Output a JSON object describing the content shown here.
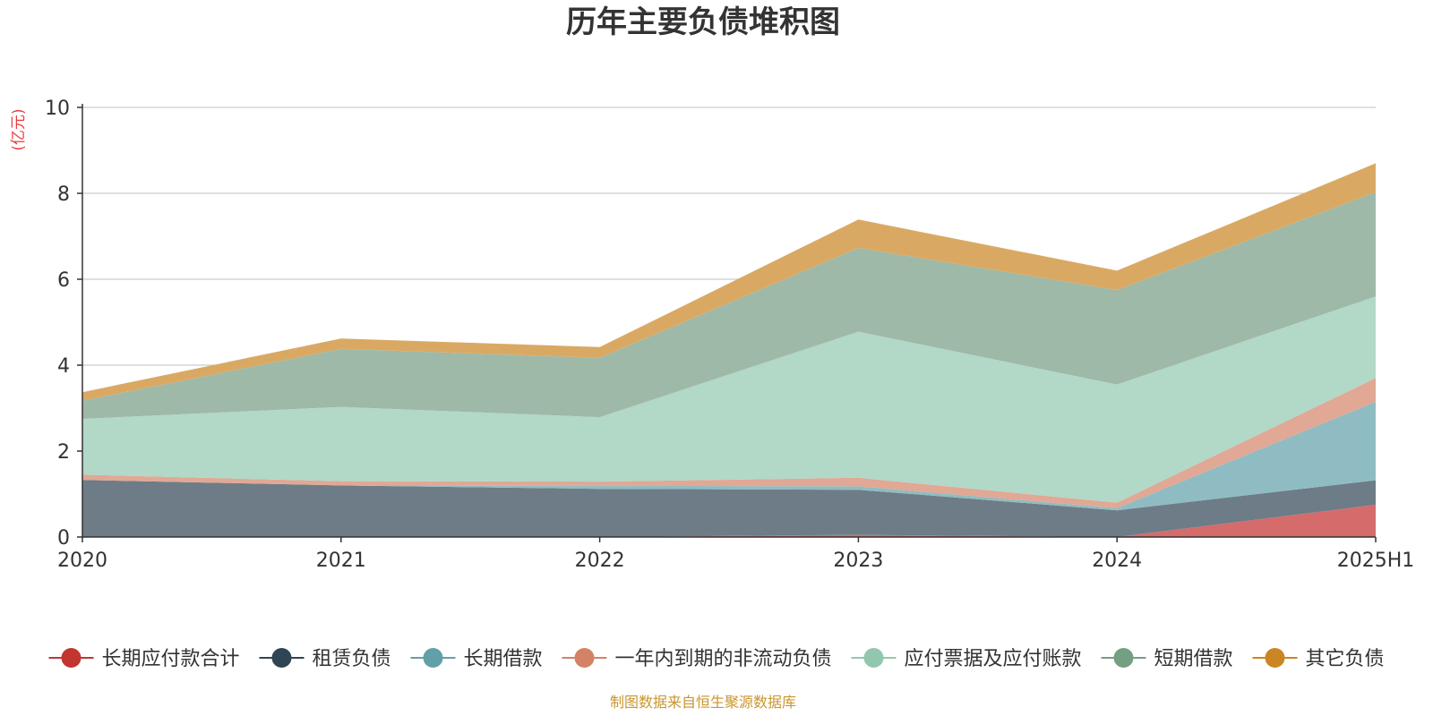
{
  "chart_data": {
    "type": "area",
    "stacked": true,
    "title": "历年主要负债堆积图",
    "ylabel": "(亿元)",
    "xlabel": "",
    "categories": [
      "2020",
      "2021",
      "2022",
      "2023",
      "2024",
      "2025H1"
    ],
    "ylim": [
      0,
      10
    ],
    "yticks": [
      0,
      2,
      4,
      6,
      8,
      10
    ],
    "grid": true,
    "legend_position": "bottom",
    "series": [
      {
        "name": "长期应付款合计",
        "color": "#c23531",
        "fill": "#d56b6a",
        "values": [
          0,
          0,
          0,
          0.05,
          0,
          0.75
        ]
      },
      {
        "name": "租赁负债",
        "color": "#2f4554",
        "fill": "#6e7c87",
        "values": [
          1.33,
          1.2,
          1.12,
          1.05,
          0.62,
          0.57
        ]
      },
      {
        "name": "长期借款",
        "color": "#61a0a8",
        "fill": "#8fbcc2",
        "values": [
          0,
          0,
          0.07,
          0.08,
          0.05,
          1.83
        ]
      },
      {
        "name": "一年内到期的非流动负债",
        "color": "#d48265",
        "fill": "#e0a895",
        "values": [
          0.12,
          0.1,
          0.1,
          0.2,
          0.13,
          0.55
        ]
      },
      {
        "name": "应付票据及应付账款",
        "color": "#91c7ae",
        "fill": "#b2d8c7",
        "values": [
          1.3,
          1.73,
          1.5,
          3.4,
          2.75,
          1.9
        ]
      },
      {
        "name": "短期借款",
        "color": "#749f83",
        "fill": "#9eb9a7",
        "values": [
          0.42,
          1.35,
          1.38,
          1.95,
          2.2,
          2.43
        ]
      },
      {
        "name": "其它负债",
        "color": "#ca8622",
        "fill": "#d9a964",
        "values": [
          0.2,
          0.24,
          0.25,
          0.66,
          0.45,
          0.67
        ]
      }
    ]
  },
  "source_note": "制图数据来自恒生聚源数据库"
}
